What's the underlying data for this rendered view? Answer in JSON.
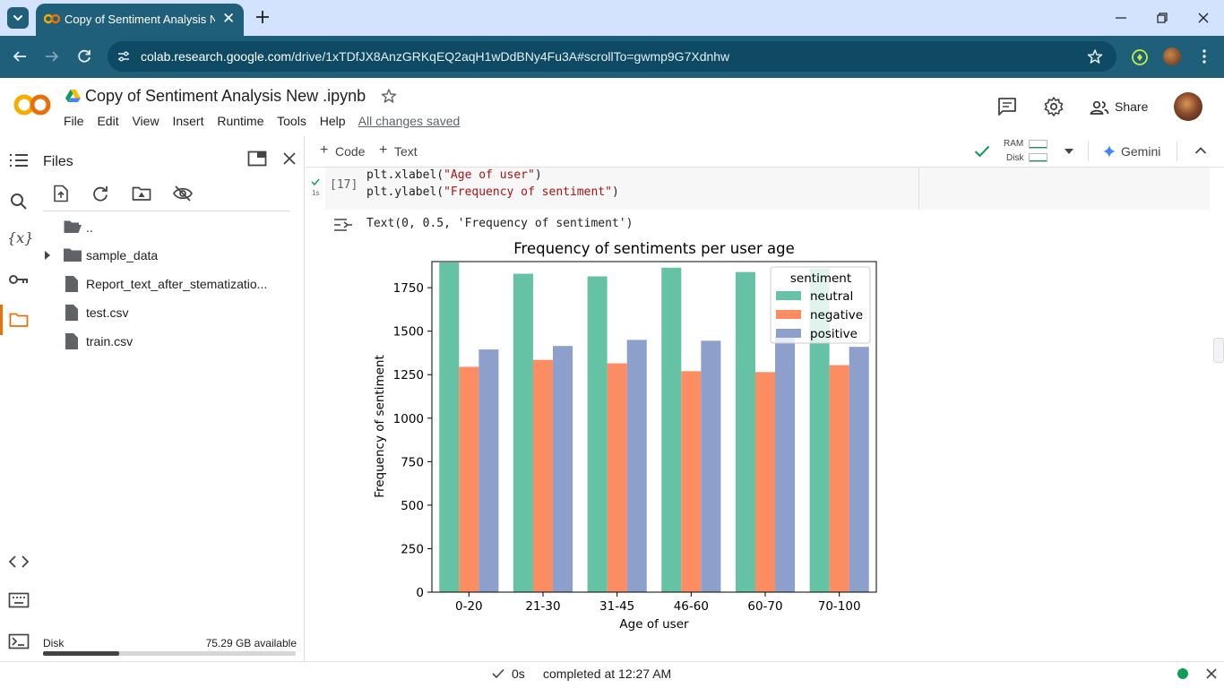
{
  "browser": {
    "tab_title": "Copy of Sentiment Analysis New .ipynb - Colab",
    "url_host": "colab.research.google.com",
    "url_path": "/drive/1xTDfJX8AnzGRKqEQ2aqH1wDdBNy4Fu3A#scrollTo=gwmp9G7Xdnhw"
  },
  "colab": {
    "notebook_title": "Copy of Sentiment Analysis New .ipynb",
    "menu": [
      "File",
      "Edit",
      "View",
      "Insert",
      "Runtime",
      "Tools",
      "Help"
    ],
    "saved_status": "All changes saved",
    "share_label": "Share"
  },
  "files_panel": {
    "title": "Files",
    "items": [
      {
        "name": "..",
        "type": "folder-up"
      },
      {
        "name": "sample_data",
        "type": "folder"
      },
      {
        "name": "Report_text_after_stematizatio...",
        "type": "file"
      },
      {
        "name": "test.csv",
        "type": "file"
      },
      {
        "name": "train.csv",
        "type": "file"
      }
    ],
    "disk_label": "Disk",
    "disk_available": "75.29 GB available",
    "disk_used_fraction": 0.3
  },
  "toolbar": {
    "code_label": "Code",
    "text_label": "Text",
    "ram_label": "RAM",
    "disk_label": "Disk",
    "gemini_label": "Gemini"
  },
  "cell": {
    "exec_time": "1s",
    "exec_count": "[17]",
    "code_lines": [
      {
        "pre": "plt.xlabel(",
        "str": "\"Age of user\"",
        "post": ")"
      },
      {
        "pre": "plt.ylabel(",
        "str": "\"Frequency of sentiment\"",
        "post": ")"
      }
    ],
    "output_text": "Text(0, 0.5, 'Frequency of sentiment')"
  },
  "chart_data": {
    "type": "bar",
    "title": "Frequency of sentiments per user age",
    "xlabel": "Age of user",
    "ylabel": "Frequency of sentiment",
    "categories": [
      "0-20",
      "21-30",
      "31-45",
      "46-60",
      "60-70",
      "70-100"
    ],
    "ylim": [
      0,
      1900
    ],
    "yticks": [
      0,
      250,
      500,
      750,
      1000,
      1250,
      1500,
      1750
    ],
    "legend_title": "sentiment",
    "legend_position": "top-right",
    "series": [
      {
        "name": "neutral",
        "color": "#66c2a5",
        "values": [
          1895,
          1830,
          1815,
          1865,
          1840,
          1860
        ]
      },
      {
        "name": "negative",
        "color": "#fc8d62",
        "values": [
          1295,
          1335,
          1315,
          1270,
          1265,
          1305
        ]
      },
      {
        "name": "positive",
        "color": "#8da0cb",
        "values": [
          1395,
          1415,
          1450,
          1445,
          1475,
          1410
        ]
      }
    ]
  },
  "status": {
    "elapsed": "0s",
    "completed": "completed at 12:27 AM"
  }
}
